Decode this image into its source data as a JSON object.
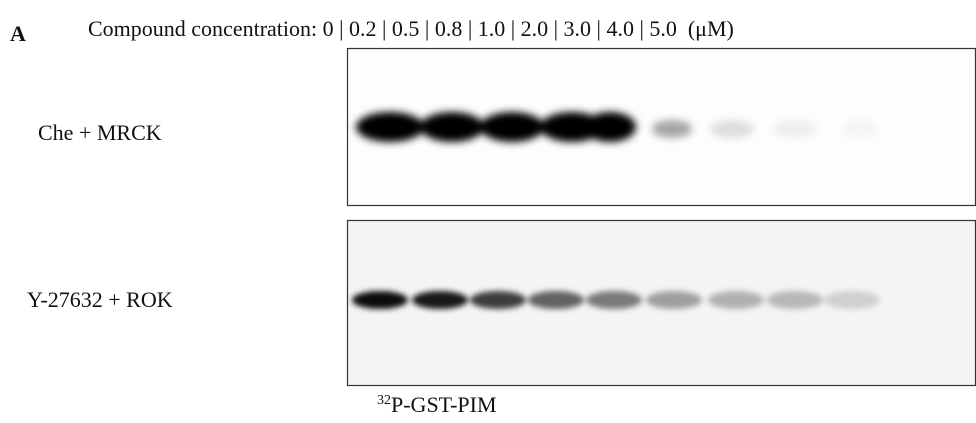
{
  "figure": {
    "panel_letter": "A",
    "header": "Compound concentration: 0 | 0.2 | 0.5 | 0.8 | 1.0 | 2.0 | 3.0 | 4.0 | 5.0  (μM)",
    "rows": [
      {
        "label": "Che + MRCK"
      },
      {
        "label": "Y-27632 + ROK"
      }
    ],
    "caption": {
      "superscript": "32",
      "text": "P-GST-PIM"
    }
  }
}
